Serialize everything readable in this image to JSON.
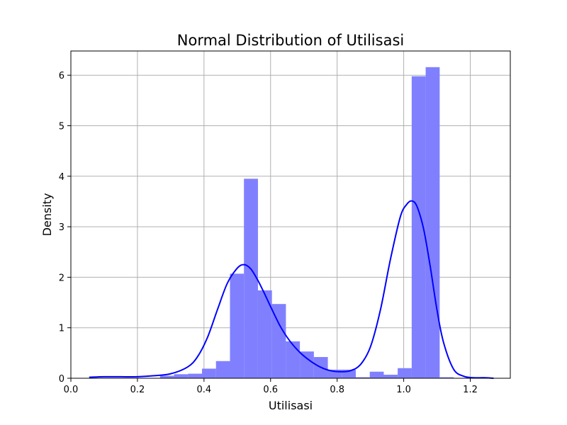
{
  "chart_data": {
    "type": "bar",
    "title": "Normal Distribution of Utilisasi",
    "xlabel": "Utilisasi",
    "ylabel": "Density",
    "xlim": [
      0.0,
      1.32
    ],
    "ylim": [
      0,
      6.5
    ],
    "grid": true,
    "x_ticks": [
      "0.0",
      "0.2",
      "0.4",
      "0.6",
      "0.8",
      "1.0",
      "1.2"
    ],
    "y_ticks": [
      "0",
      "1",
      "2",
      "3",
      "4",
      "5",
      "6"
    ],
    "colors": {
      "bars": "#8080ff",
      "kde": "#0000ff",
      "grid": "#b0b0b0"
    },
    "histogram": {
      "bin_width": 0.0421,
      "bins": [
        {
          "x0": 0.268,
          "density": 0.05
        },
        {
          "x0": 0.31,
          "density": 0.08
        },
        {
          "x0": 0.352,
          "density": 0.09
        },
        {
          "x0": 0.394,
          "density": 0.19
        },
        {
          "x0": 0.436,
          "density": 0.34
        },
        {
          "x0": 0.478,
          "density": 2.07
        },
        {
          "x0": 0.52,
          "density": 3.95
        },
        {
          "x0": 0.562,
          "density": 1.74
        },
        {
          "x0": 0.604,
          "density": 1.47
        },
        {
          "x0": 0.646,
          "density": 0.73
        },
        {
          "x0": 0.688,
          "density": 0.53
        },
        {
          "x0": 0.73,
          "density": 0.42
        },
        {
          "x0": 0.772,
          "density": 0.17
        },
        {
          "x0": 0.814,
          "density": 0.17
        },
        {
          "x0": 0.856,
          "density": 0.02
        },
        {
          "x0": 0.898,
          "density": 0.13
        },
        {
          "x0": 0.94,
          "density": 0.07
        },
        {
          "x0": 0.982,
          "density": 0.2
        },
        {
          "x0": 1.024,
          "density": 5.98
        },
        {
          "x0": 1.066,
          "density": 6.16
        },
        {
          "x0": 1.108,
          "density": 0.02
        }
      ]
    },
    "kde": {
      "x": [
        0.055,
        0.1,
        0.15,
        0.2,
        0.25,
        0.3,
        0.35,
        0.38,
        0.41,
        0.44,
        0.47,
        0.5,
        0.52,
        0.54,
        0.56,
        0.58,
        0.6,
        0.63,
        0.66,
        0.69,
        0.72,
        0.75,
        0.78,
        0.81,
        0.84,
        0.87,
        0.9,
        0.93,
        0.96,
        0.99,
        1.01,
        1.025,
        1.04,
        1.06,
        1.08,
        1.1,
        1.12,
        1.15,
        1.18,
        1.21,
        1.24,
        1.27
      ],
      "y": [
        0.02,
        0.03,
        0.03,
        0.03,
        0.05,
        0.09,
        0.22,
        0.42,
        0.8,
        1.35,
        1.88,
        2.18,
        2.25,
        2.17,
        1.96,
        1.7,
        1.42,
        1.02,
        0.72,
        0.5,
        0.34,
        0.22,
        0.15,
        0.13,
        0.15,
        0.27,
        0.62,
        1.35,
        2.35,
        3.2,
        3.45,
        3.51,
        3.4,
        2.95,
        2.2,
        1.35,
        0.7,
        0.18,
        0.04,
        0.01,
        0.01,
        0.0
      ]
    }
  }
}
